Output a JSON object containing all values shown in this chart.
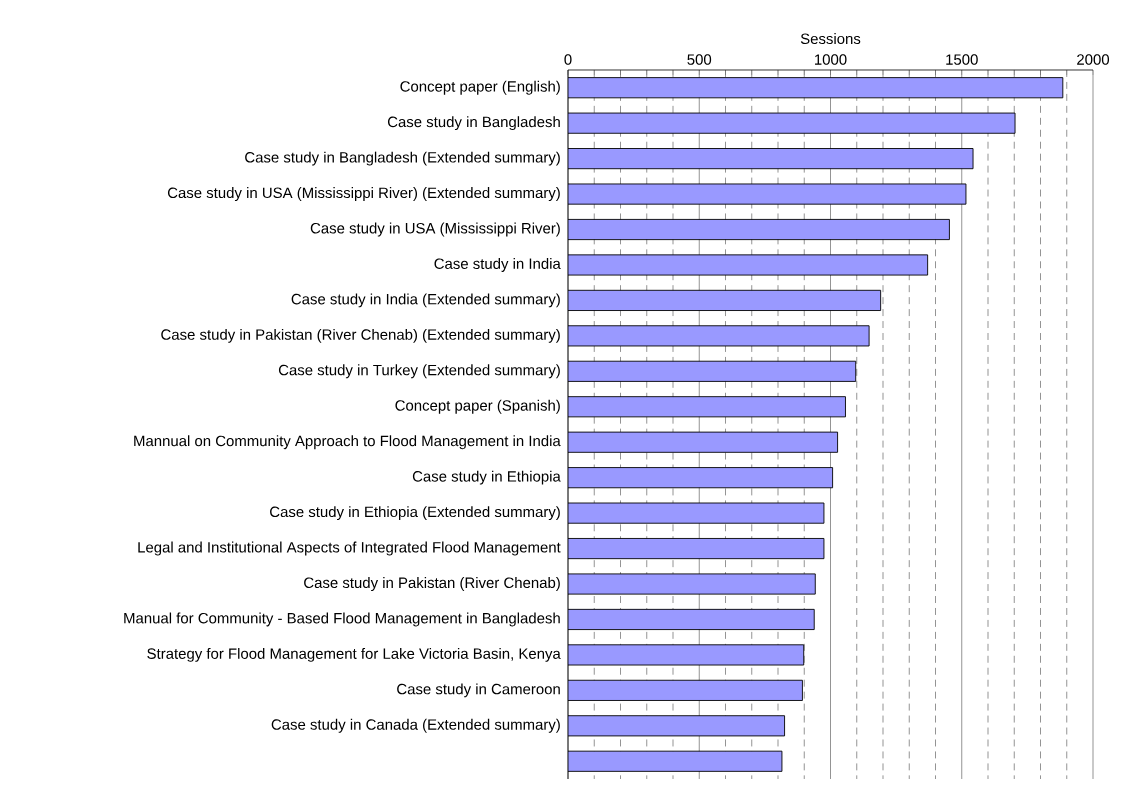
{
  "chart_data": {
    "type": "bar",
    "orientation": "horizontal",
    "xlabel": "Sessions",
    "categories": [
      "Concept paper (English)",
      "Case study in Bangladesh",
      "Case study in Bangladesh (Extended summary)",
      "Case study in USA (Mississippi River) (Extended summary)",
      "Case study in USA (Mississippi River)",
      "Case study in India",
      "Case study in India (Extended summary)",
      "Case study in Pakistan (River Chenab) (Extended summary)",
      "Case study in Turkey (Extended summary)",
      "Concept paper (Spanish)",
      "Mannual on Community Approach to Flood Management in India",
      "Case study in Ethiopia",
      "Case study in Ethiopia (Extended summary)",
      "Legal and Institutional Aspects of Integrated Flood Management",
      "Case study in Pakistan (River Chenab)",
      "Manual for Community - Based Flood Management in Bangladesh",
      "Strategy for Flood Management for Lake Victoria Basin, Kenya",
      "Case study in Cameroon",
      "Case study in Canada (Extended summary)",
      null
    ],
    "values": [
      1885,
      1703,
      1543,
      1516,
      1453,
      1370,
      1191,
      1147,
      1096,
      1057,
      1027,
      1008,
      975,
      975,
      942,
      938,
      898,
      893,
      825,
      815
    ],
    "color": "#9999ff",
    "xlim": [
      0,
      2000
    ],
    "xticks": [
      0,
      {
        "value": 100,
        "label": null
      },
      {
        "value": 200,
        "label": null
      },
      {
        "value": 300,
        "label": null
      },
      {
        "value": 400,
        "label": null
      },
      500,
      {
        "value": 600,
        "label": null
      },
      {
        "value": 700,
        "label": null
      },
      {
        "value": 800,
        "label": null
      },
      {
        "value": 900,
        "label": null
      },
      1000,
      {
        "value": 1100,
        "label": null
      },
      {
        "value": 1200,
        "label": null
      },
      {
        "value": 1300,
        "label": null
      },
      {
        "value": 1400,
        "label": null
      },
      1500,
      {
        "value": 1600,
        "label": null
      },
      {
        "value": 1700,
        "label": null
      },
      {
        "value": 1800,
        "label": null
      },
      {
        "value": 1900,
        "label": null
      },
      2000
    ],
    "grid": "x"
  }
}
